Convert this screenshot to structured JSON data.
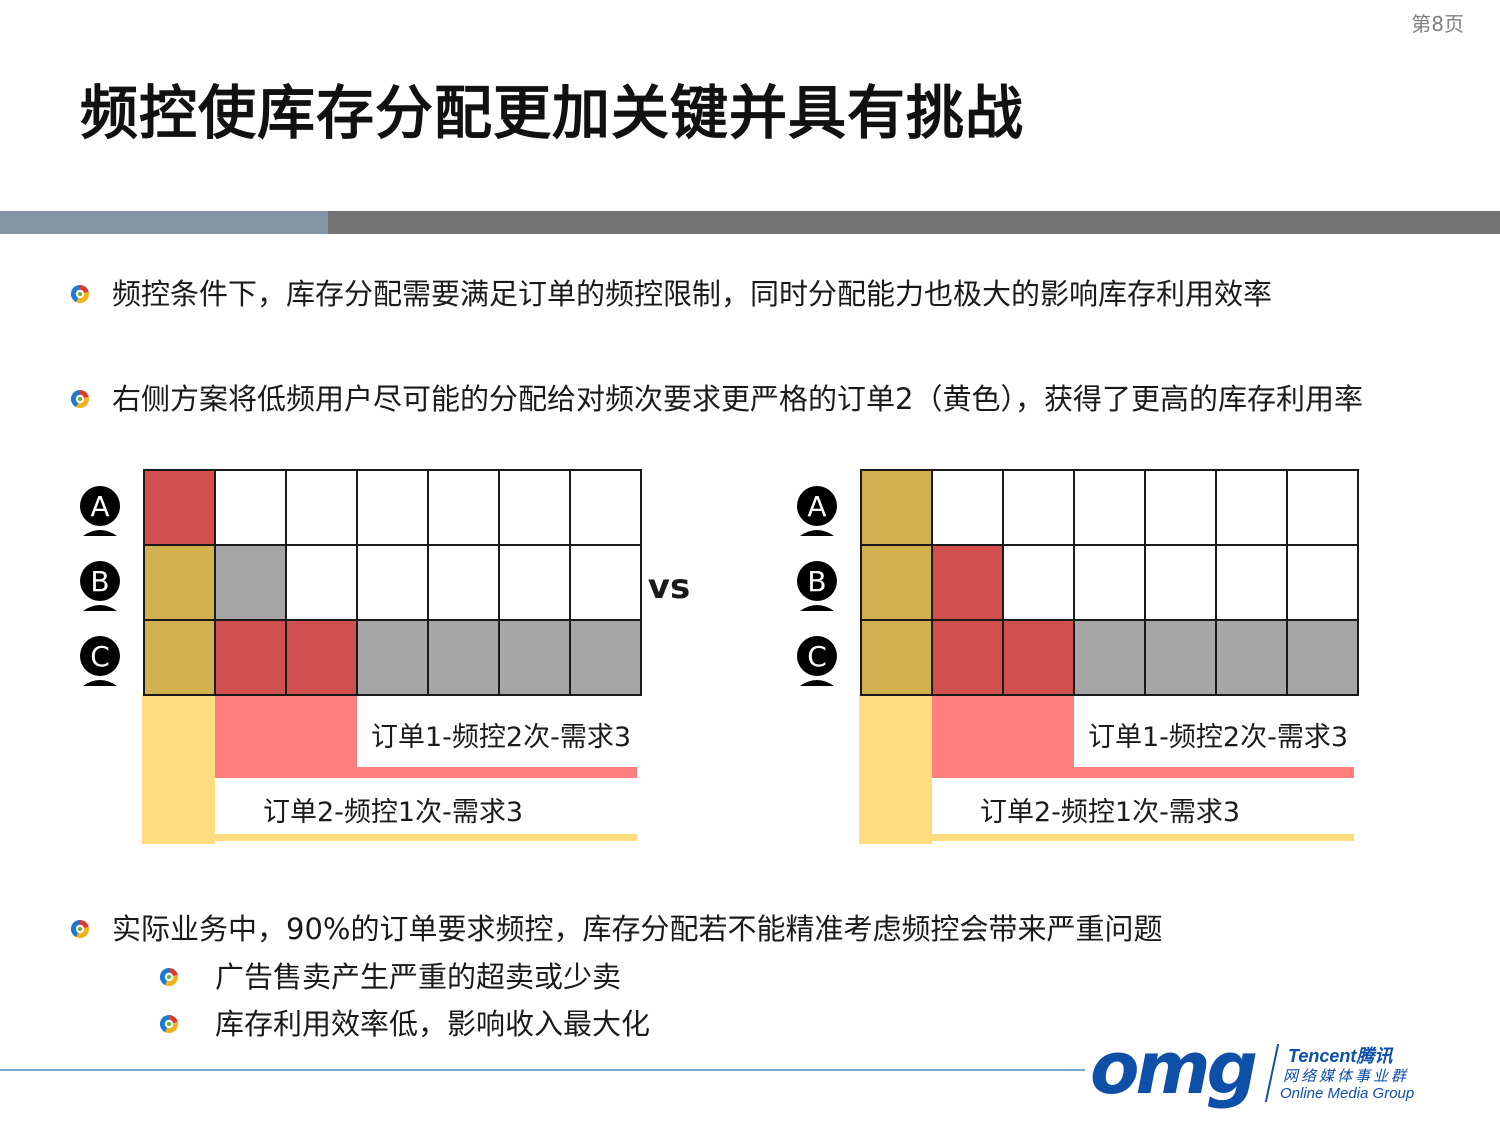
{
  "page_number": "第8页",
  "title": "频控使库存分配更加关键并具有挑战",
  "bullets": {
    "b1": "频控条件下，库存分配需要满足订单的频控限制，同时分配能力也极大的影响库存利用效率",
    "b2": "右侧方案将低频用户尽可能的分配给对频次要求更严格的订单2（黄色），获得了更高的库存利用率",
    "b3": "实际业务中，90%的订单要求频控，库存分配若不能精准考虑频控会带来严重问题",
    "s1": "广告售卖产生严重的超卖或少卖",
    "s2": "库存利用效率低，影响收入最大化"
  },
  "diagram": {
    "vs_label": "vs",
    "users": [
      "A",
      "B",
      "C"
    ],
    "order1_label": "订单1-频控2次-需求3",
    "order2_label": "订单2-频控1次-需求3",
    "colors": {
      "order1_cell": "#d05050",
      "order2_cell": "#d1b14f",
      "unused_cell": "#a6a6a6",
      "empty_cell": "#ffffff",
      "order1_band": "#ff7f7f",
      "order2_band": "#ffdc7f"
    },
    "left_grid": [
      [
        "order1",
        "empty",
        "empty",
        "empty",
        "empty",
        "empty",
        "empty"
      ],
      [
        "order2",
        "unused",
        "empty",
        "empty",
        "empty",
        "empty",
        "empty"
      ],
      [
        "order2",
        "order1",
        "order1",
        "unused",
        "unused",
        "unused",
        "unused"
      ]
    ],
    "right_grid": [
      [
        "order2",
        "empty",
        "empty",
        "empty",
        "empty",
        "empty",
        "empty"
      ],
      [
        "order2",
        "order1",
        "empty",
        "empty",
        "empty",
        "empty",
        "empty"
      ],
      [
        "order2",
        "order1",
        "order1",
        "unused",
        "unused",
        "unused",
        "unused"
      ]
    ]
  },
  "logo": {
    "brand": "omg",
    "company": "Tencent腾讯",
    "dept_cn": "网络媒体事业群",
    "dept_en": "Online Media Group"
  }
}
